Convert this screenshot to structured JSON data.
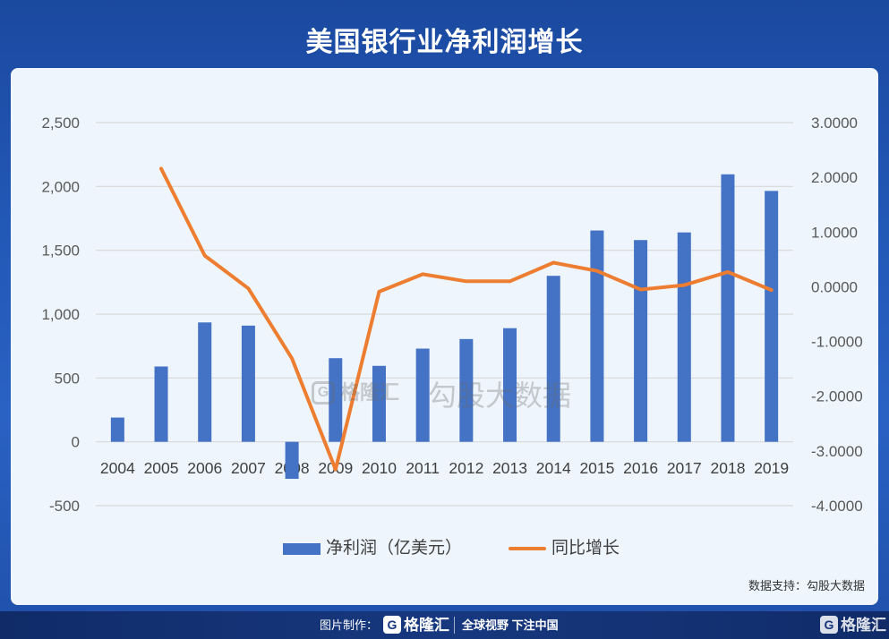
{
  "title": "美国银行业净利润增长",
  "chart_data": {
    "type": "bar",
    "categories": [
      "2004",
      "2005",
      "2006",
      "2007",
      "2008",
      "2009",
      "2010",
      "2011",
      "2012",
      "2013",
      "2014",
      "2015",
      "2016",
      "2017",
      "2018",
      "2019"
    ],
    "series": [
      {
        "name": "净利润（亿美元）",
        "type": "bar",
        "axis": "left",
        "color": "#4472C4",
        "values": [
          190,
          590,
          935,
          910,
          -290,
          655,
          595,
          730,
          805,
          890,
          1300,
          1655,
          1580,
          1640,
          2095,
          1965
        ]
      },
      {
        "name": "同比增长",
        "type": "line",
        "axis": "right",
        "color": "#ED7D31",
        "values": [
          null,
          2.16,
          0.57,
          -0.03,
          -1.31,
          -3.34,
          -0.09,
          0.23,
          0.1,
          0.1,
          0.44,
          0.29,
          -0.05,
          0.03,
          0.27,
          -0.06
        ]
      }
    ],
    "left_axis": {
      "ylim": [
        -500,
        2500
      ],
      "ticks": [
        2500,
        2000,
        1500,
        1000,
        500,
        0,
        -500
      ],
      "tick_labels": [
        "2,500",
        "2,000",
        "1,500",
        "1,000",
        "500",
        "0",
        "-500"
      ]
    },
    "right_axis": {
      "ylim": [
        -4,
        3
      ],
      "ticks": [
        3,
        2,
        1,
        0,
        -1,
        -2,
        -3,
        -4
      ],
      "tick_labels": [
        "3.0000",
        "2.0000",
        "1.0000",
        "0.0000",
        "-1.0000",
        "-2.0000",
        "-3.0000",
        "-4.0000"
      ]
    },
    "grid": true,
    "legend_position": "bottom",
    "title": "美国银行业净利润增长"
  },
  "source": "数据支持：勾股大数据",
  "watermark": {
    "logo_mark": "G",
    "brand": "格隆汇",
    "text": "勾股大数据"
  },
  "footer": {
    "made_by_label": "图片制作：",
    "logo_mark": "G",
    "brand": "格隆汇",
    "slogan": "全球视野 下注中国",
    "corner_logo_mark": "G",
    "corner_brand": "格隆汇"
  }
}
